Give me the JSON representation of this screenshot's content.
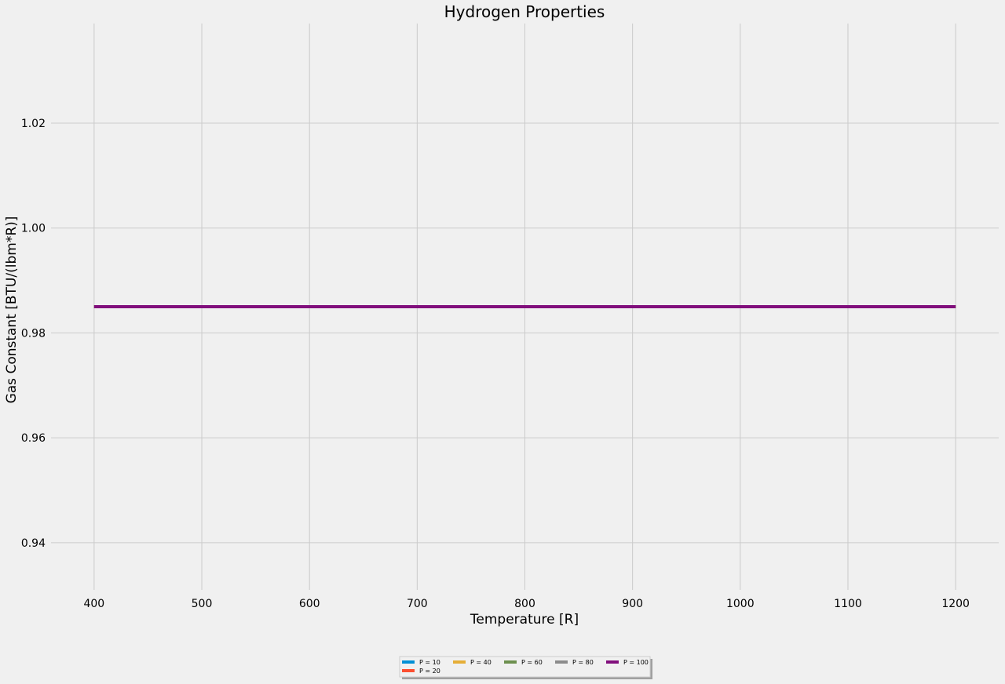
{
  "chart_data": {
    "type": "line",
    "title": "Hydrogen Properties",
    "xlabel": "Temperature [R]",
    "ylabel": "Gas Constant [BTU/(lbm*R)]",
    "xlim": [
      360,
      1240
    ],
    "ylim": [
      0.931,
      1.039
    ],
    "xticks": [
      400,
      500,
      600,
      700,
      800,
      900,
      1000,
      1100,
      1200
    ],
    "yticks": [
      0.94,
      0.96,
      0.98,
      1.0,
      1.02
    ],
    "ytick_labels": [
      "0.94",
      "0.96",
      "0.98",
      "1.00",
      "1.02"
    ],
    "grid": true,
    "legend_placement": "below center",
    "series": [
      {
        "name": "P = 10",
        "color": "#008fd5",
        "x": [
          400,
          1200
        ],
        "y": [
          0.985,
          0.985
        ]
      },
      {
        "name": "P = 20",
        "color": "#fc4f30",
        "x": [
          400,
          1200
        ],
        "y": [
          0.985,
          0.985
        ]
      },
      {
        "name": "P = 40",
        "color": "#e5ae38",
        "x": [
          400,
          1200
        ],
        "y": [
          0.985,
          0.985
        ]
      },
      {
        "name": "P = 60",
        "color": "#6d904f",
        "x": [
          400,
          1200
        ],
        "y": [
          0.985,
          0.985
        ]
      },
      {
        "name": "P = 80",
        "color": "#8b8b8b",
        "x": [
          400,
          1200
        ],
        "y": [
          0.985,
          0.985
        ]
      },
      {
        "name": "P = 100",
        "color": "#810f7c",
        "x": [
          400,
          1200
        ],
        "y": [
          0.985,
          0.985
        ]
      }
    ]
  }
}
